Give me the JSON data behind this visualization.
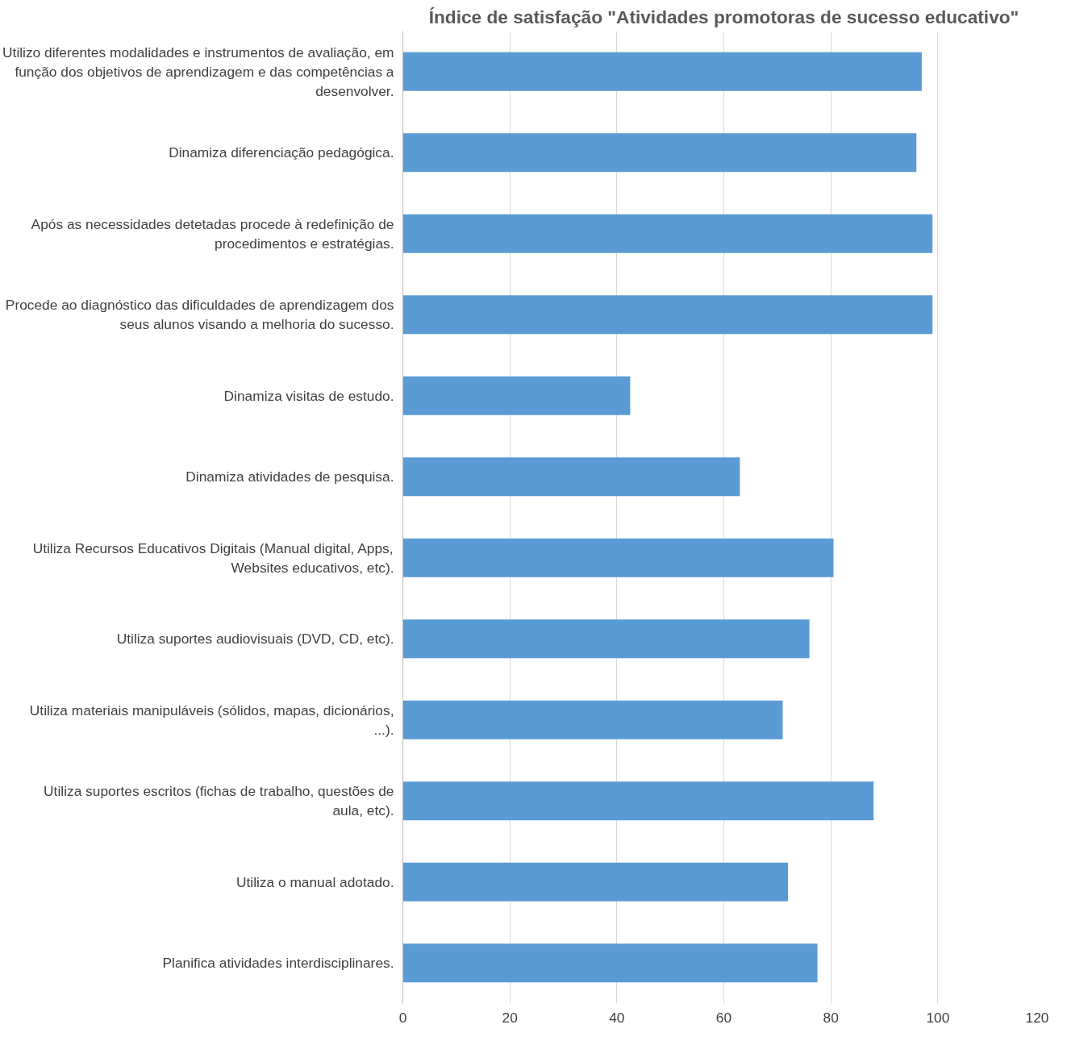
{
  "chart_data": {
    "type": "bar",
    "orientation": "horizontal",
    "title": "Índice de satisfação \"Atividades promotoras de sucesso educativo\"",
    "categories": [
      "Utilizo diferentes modalidades e instrumentos de avaliação, em função dos objetivos de aprendizagem e das competências a desenvolver.",
      "Dinamiza diferenciação pedagógica.",
      "Após as necessidades detetadas procede à redefinição de procedimentos e estratégias.",
      "Procede ao diagnóstico das dificuldades de aprendizagem dos seus alunos visando a melhoria do sucesso.",
      "Dinamiza visitas de estudo.",
      "Dinamiza atividades de pesquisa.",
      "Utiliza Recursos Educativos Digitais (Manual digital, Apps, Websites educativos, etc).",
      "Utiliza suportes audiovisuais (DVD, CD, etc).",
      "Utiliza materiais manipuláveis (sólidos, mapas, dicionários, ...).",
      "Utiliza suportes escritos (fichas de trabalho, questões de aula, etc).",
      "Utiliza o manual adotado.",
      "Planifica atividades interdisciplinares."
    ],
    "values": [
      97,
      96,
      99,
      99,
      42.5,
      63,
      80.5,
      76,
      71,
      88,
      72,
      77.5
    ],
    "color": "#5b9bd5",
    "xlim": [
      0,
      120
    ],
    "xticks": [
      0,
      20,
      40,
      60,
      80,
      100,
      120
    ],
    "grid": "x"
  }
}
